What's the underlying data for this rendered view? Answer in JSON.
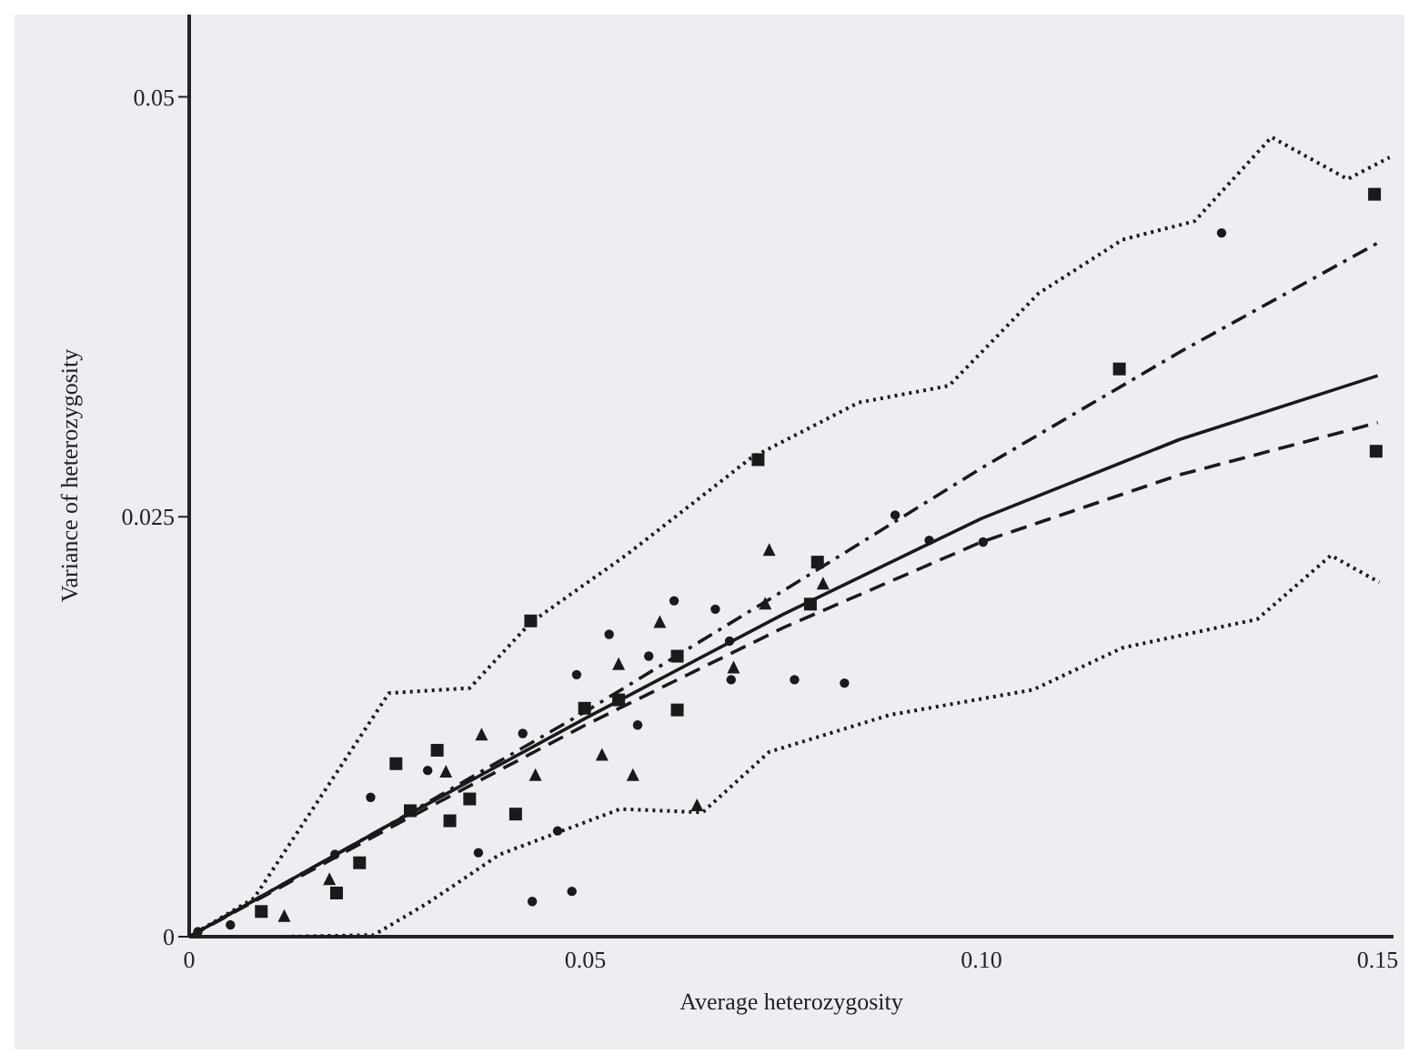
{
  "chart_data": {
    "type": "scatter",
    "xlabel": "Average heterozygosity",
    "ylabel": "Variance of heterozygosity",
    "xlim": [
      0,
      0.152
    ],
    "ylim": [
      0,
      0.0549
    ],
    "xticks": [
      0,
      0.05,
      {
        "value": 0.1,
        "label": "0.10"
      },
      0.15
    ],
    "yticks": [
      0,
      0.025,
      0.05
    ],
    "series": [
      {
        "type": "scatter",
        "marker": "square",
        "color": "#1a1a1a",
        "x": [
          0.0091,
          0.0186,
          0.0215,
          0.0279,
          0.0261,
          0.0329,
          0.0354,
          0.0313,
          0.0412,
          0.0431,
          0.0499,
          0.0542,
          0.0616,
          0.0616,
          0.0793,
          0.0784,
          0.0718,
          0.1174,
          0.1496,
          0.1498
        ],
        "values": [
          0.0015,
          0.0026,
          0.0044,
          0.0075,
          0.0103,
          0.0069,
          0.0082,
          0.0111,
          0.0073,
          0.0188,
          0.0136,
          0.0141,
          0.0167,
          0.0135,
          0.0223,
          0.0198,
          0.0284,
          0.0338,
          0.0442,
          0.0289
        ]
      },
      {
        "type": "scatter",
        "marker": "triangle",
        "color": "#1a1a1a",
        "x": [
          0.012,
          0.0177,
          0.0324,
          0.0369,
          0.0437,
          0.0521,
          0.0542,
          0.0594,
          0.0687,
          0.0727,
          0.0732,
          0.08,
          0.0641,
          0.056
        ],
        "values": [
          0.0012,
          0.0034,
          0.0098,
          0.012,
          0.0096,
          0.0108,
          0.0162,
          0.0187,
          0.016,
          0.0198,
          0.023,
          0.021,
          0.0078,
          0.0096
        ]
      },
      {
        "type": "scatter",
        "marker": "circle",
        "color": "#1a1a1a",
        "x": [
          0.0011,
          0.0052,
          0.0184,
          0.0229,
          0.0301,
          0.0365,
          0.0433,
          0.0465,
          0.0489,
          0.053,
          0.058,
          0.0612,
          0.0682,
          0.0684,
          0.0764,
          0.0827,
          0.0891,
          0.0934,
          0.1002,
          0.1303,
          0.0483,
          0.0421,
          0.0566,
          0.0664
        ],
        "values": [
          0.0003,
          0.0007,
          0.0049,
          0.0083,
          0.0099,
          0.005,
          0.0021,
          0.0063,
          0.0156,
          0.018,
          0.0167,
          0.02,
          0.0176,
          0.0153,
          0.0153,
          0.0151,
          0.0251,
          0.0236,
          0.0235,
          0.0419,
          0.0027,
          0.0121,
          0.0126,
          0.0195
        ]
      },
      {
        "type": "line",
        "line_style": "solid",
        "color": "#1a1a1a",
        "x": [
          0,
          0.025,
          0.05,
          0.075,
          0.1,
          0.125,
          0.15
        ],
        "values": [
          0,
          0.0066,
          0.013,
          0.0192,
          0.0249,
          0.0296,
          0.0334
        ]
      },
      {
        "type": "line",
        "line_style": "dashed",
        "color": "#1a1a1a",
        "x": [
          0,
          0.025,
          0.05,
          0.075,
          0.1,
          0.125,
          0.15
        ],
        "values": [
          0,
          0.0064,
          0.0126,
          0.0184,
          0.0235,
          0.0275,
          0.0306
        ]
      },
      {
        "type": "line",
        "line_style": "dashdot",
        "color": "#1a1a1a",
        "x": [
          0,
          0.025,
          0.05,
          0.075,
          0.1,
          0.125,
          0.15
        ],
        "values": [
          0,
          0.0066,
          0.0134,
          0.0206,
          0.0279,
          0.0348,
          0.0413
        ]
      },
      {
        "type": "line",
        "line_style": "dotted",
        "color": "#1a1a1a",
        "x": [
          0,
          0.0082,
          0.0252,
          0.0354,
          0.0431,
          0.0551,
          0.0709,
          0.0845,
          0.0959,
          0.1072,
          0.1178,
          0.1269,
          0.1366,
          0.1462,
          0.1515
        ],
        "values": [
          0,
          0.0023,
          0.0145,
          0.0148,
          0.0187,
          0.0227,
          0.0285,
          0.0318,
          0.0328,
          0.0383,
          0.0415,
          0.0426,
          0.0476,
          0.0451,
          0.0464
        ]
      },
      {
        "type": "line",
        "line_style": "dotted",
        "color": "#1a1a1a",
        "x": [
          0.012,
          0.0233,
          0.0301,
          0.0392,
          0.0544,
          0.0648,
          0.0732,
          0.0884,
          0.1065,
          0.1178,
          0.1348,
          0.1441,
          0.1502
        ],
        "values": [
          0,
          0.0001,
          0.002,
          0.0049,
          0.0076,
          0.0074,
          0.011,
          0.0132,
          0.0147,
          0.0172,
          0.0189,
          0.0227,
          0.0211
        ]
      }
    ]
  }
}
